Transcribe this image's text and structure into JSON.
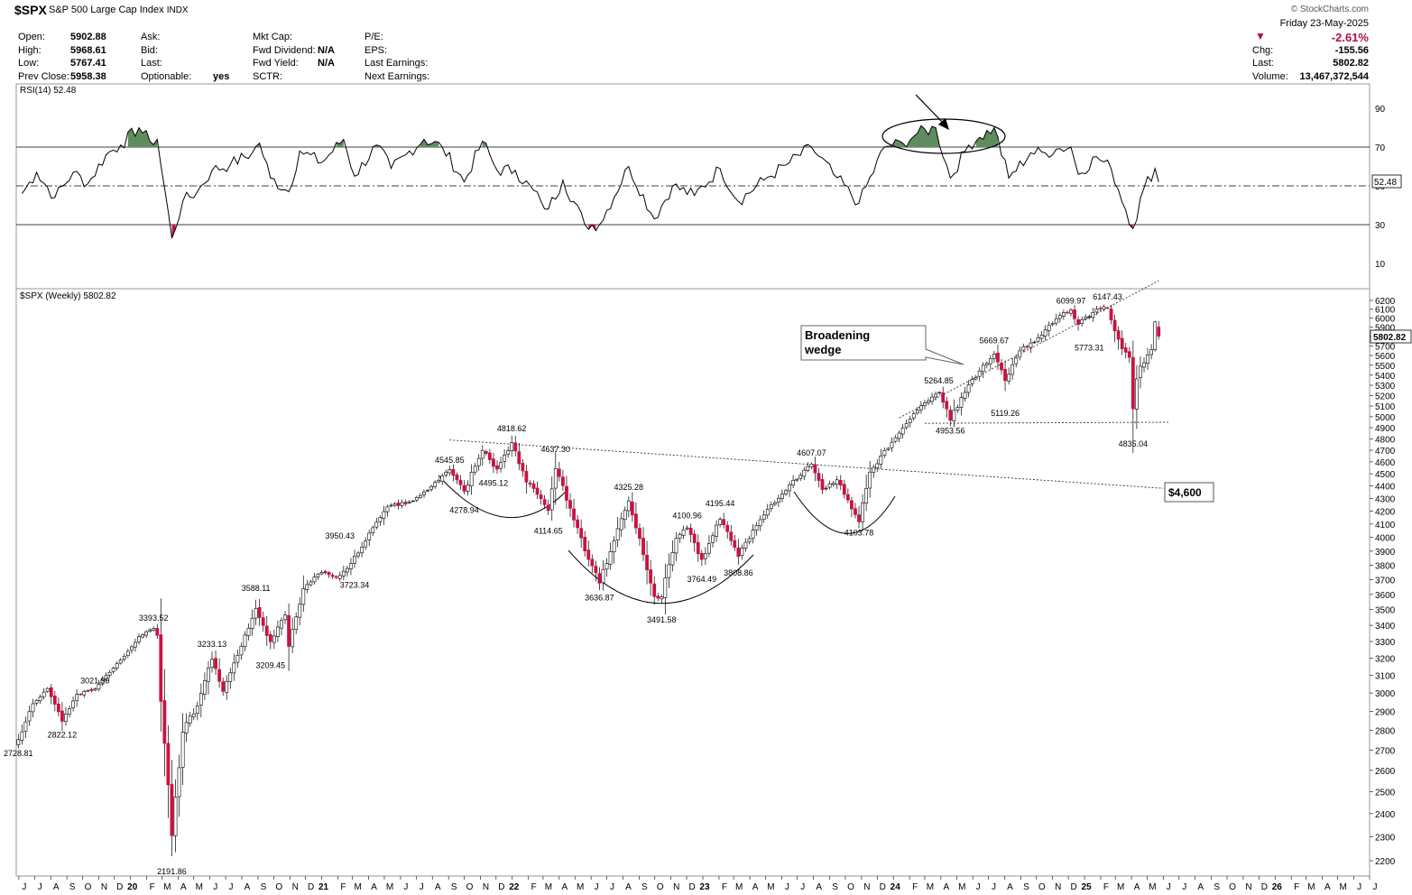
{
  "header": {
    "symbol": "$SPX",
    "name": "S&P 500 Large Cap Index",
    "exchange": "INDX",
    "brand": "© StockCharts.com",
    "date": "Friday   23-May-2025",
    "change_pct": "-2.61%",
    "change_label": "Chg:",
    "change_value": "-155.56",
    "last_label": "Last:",
    "last_value": "5802.82",
    "volume_label": "Volume:",
    "volume_value": "13,467,372,544",
    "fields": [
      {
        "label": "Open:",
        "value": "5902.88"
      },
      {
        "label": "High:",
        "value": "5968.61"
      },
      {
        "label": "Low:",
        "value": "5767.41"
      },
      {
        "label": "Prev Close:",
        "value": "5958.38"
      },
      {
        "label": "Ask:",
        "value": ""
      },
      {
        "label": "Bid:",
        "value": ""
      },
      {
        "label": "Last:",
        "value": ""
      },
      {
        "label": "Optionable:",
        "value": "yes"
      },
      {
        "label": "Mkt Cap:",
        "value": ""
      },
      {
        "label": "Fwd Dividend:",
        "value": "N/A"
      },
      {
        "label": "Fwd Yield:",
        "value": "N/A"
      },
      {
        "label": "SCTR:",
        "value": ""
      },
      {
        "label": "P/E:",
        "value": ""
      },
      {
        "label": "EPS:",
        "value": ""
      },
      {
        "label": "Last Earnings:",
        "value": ""
      },
      {
        "label": "Next Earnings:",
        "value": ""
      }
    ]
  },
  "chart_data": {
    "type": "candlestick",
    "colors": {
      "up": "#ffffff",
      "down": "#cc1142",
      "outline": "#000000",
      "rsi_fill": "#5e8c5e"
    },
    "rsi": {
      "label": "RSI(14) 52.48",
      "value_tag": "52.48",
      "levels": [
        90,
        70,
        50,
        30,
        10
      ],
      "overbought": 70,
      "oversold": 30,
      "points": [
        [
          "2019-06-07",
          46
        ],
        [
          "2019-07-05",
          57
        ],
        [
          "2019-08-09",
          44
        ],
        [
          "2019-09-13",
          57
        ],
        [
          "2019-10-11",
          51
        ],
        [
          "2019-11-15",
          66
        ],
        [
          "2019-12-13",
          71
        ],
        [
          "2020-01-17",
          80
        ],
        [
          "2020-02-07",
          73
        ],
        [
          "2020-02-21",
          74
        ],
        [
          "2020-03-20",
          23
        ],
        [
          "2020-04-10",
          42
        ],
        [
          "2020-05-08",
          47
        ],
        [
          "2020-06-05",
          58
        ],
        [
          "2020-07-10",
          61
        ],
        [
          "2020-08-21",
          67
        ],
        [
          "2020-09-04",
          72
        ],
        [
          "2020-09-25",
          54
        ],
        [
          "2020-10-30",
          47
        ],
        [
          "2020-11-20",
          68
        ],
        [
          "2021-01-01",
          62
        ],
        [
          "2021-02-12",
          74
        ],
        [
          "2021-03-05",
          55
        ],
        [
          "2021-04-16",
          71
        ],
        [
          "2021-05-14",
          59
        ],
        [
          "2021-06-11",
          66
        ],
        [
          "2021-07-16",
          74
        ],
        [
          "2021-08-20",
          70
        ],
        [
          "2021-10-01",
          52
        ],
        [
          "2021-11-05",
          73
        ],
        [
          "2021-12-03",
          58
        ],
        [
          "2022-01-07",
          58
        ],
        [
          "2022-02-25",
          42
        ],
        [
          "2022-03-11",
          38
        ],
        [
          "2022-04-08",
          53
        ],
        [
          "2022-05-20",
          30
        ],
        [
          "2022-06-17",
          30
        ],
        [
          "2022-08-12",
          60
        ],
        [
          "2022-09-30",
          33
        ],
        [
          "2022-11-04",
          50
        ],
        [
          "2022-12-16",
          45
        ],
        [
          "2023-02-03",
          59
        ],
        [
          "2023-03-10",
          42
        ],
        [
          "2023-04-28",
          53
        ],
        [
          "2023-06-16",
          62
        ],
        [
          "2023-07-28",
          70
        ],
        [
          "2023-09-08",
          56
        ],
        [
          "2023-10-27",
          41
        ],
        [
          "2023-12-15",
          70
        ],
        [
          "2024-01-19",
          72
        ],
        [
          "2024-02-16",
          77
        ],
        [
          "2024-03-22",
          80
        ],
        [
          "2024-04-19",
          54
        ],
        [
          "2024-05-24",
          71
        ],
        [
          "2024-06-14",
          75
        ],
        [
          "2024-07-12",
          80
        ],
        [
          "2024-08-09",
          54
        ],
        [
          "2024-09-20",
          67
        ],
        [
          "2024-10-18",
          67
        ],
        [
          "2024-11-08",
          69
        ],
        [
          "2024-12-06",
          70
        ],
        [
          "2024-12-20",
          56
        ],
        [
          "2025-01-24",
          65
        ],
        [
          "2025-02-21",
          59
        ],
        [
          "2025-04-04",
          28
        ],
        [
          "2025-04-25",
          49
        ],
        [
          "2025-05-16",
          59
        ],
        [
          "2025-05-23",
          52
        ]
      ]
    },
    "price": {
      "label": "$SPX (Weekly) 5802.82",
      "last_tag": "5802.82",
      "y_ticks": [
        2200,
        2300,
        2400,
        2500,
        2600,
        2700,
        2800,
        2900,
        3000,
        3100,
        3200,
        3300,
        3400,
        3500,
        3600,
        3700,
        3800,
        3900,
        4000,
        4100,
        4200,
        4300,
        4400,
        4500,
        4600,
        4700,
        4800,
        4900,
        5000,
        5100,
        5200,
        5300,
        5400,
        5500,
        5600,
        5700,
        5800,
        5900,
        6000,
        6100,
        6200
      ],
      "anchors": [
        [
          "2019-05-31",
          2752,
          0.6
        ],
        [
          "2019-06-28",
          2941,
          0.3
        ],
        [
          "2019-07-26",
          3025,
          0.3
        ],
        [
          "2019-08-23",
          2847,
          0.7
        ],
        [
          "2019-09-20",
          2992,
          0.4
        ],
        [
          "2019-10-25",
          3022,
          0.4
        ],
        [
          "2019-11-29",
          3141,
          0.3
        ],
        [
          "2019-12-27",
          3240,
          0.3
        ],
        [
          "2020-01-17",
          3330,
          0.3
        ],
        [
          "2020-02-14",
          3380,
          0.3
        ],
        [
          "2020-02-21",
          3337,
          0.4
        ],
        [
          "2020-02-28",
          2954,
          1.0
        ],
        [
          "2020-03-20",
          2304,
          1.2
        ],
        [
          "2020-04-10",
          2790,
          1.1
        ],
        [
          "2020-05-08",
          2930,
          0.9
        ],
        [
          "2020-06-05",
          3193,
          0.8
        ],
        [
          "2020-06-26",
          3009,
          0.7
        ],
        [
          "2020-07-31",
          3271,
          0.5
        ],
        [
          "2020-08-28",
          3508,
          0.4
        ],
        [
          "2020-09-25",
          3298,
          0.9
        ],
        [
          "2020-10-23",
          3465,
          0.6
        ],
        [
          "2020-10-30",
          3270,
          0.7
        ],
        [
          "2020-11-27",
          3638,
          0.5
        ],
        [
          "2020-12-31",
          3756,
          0.4
        ],
        [
          "2021-01-29",
          3714,
          0.5
        ],
        [
          "2021-02-26",
          3811,
          0.6
        ],
        [
          "2021-04-01",
          4019,
          0.4
        ],
        [
          "2021-05-07",
          4232,
          0.5
        ],
        [
          "2021-06-25",
          4280,
          0.4
        ],
        [
          "2021-07-30",
          4395,
          0.4
        ],
        [
          "2021-09-03",
          4535,
          0.4
        ],
        [
          "2021-10-01",
          4357,
          0.9
        ],
        [
          "2021-11-05",
          4697,
          0.5
        ],
        [
          "2021-12-03",
          4538,
          0.9
        ],
        [
          "2021-12-31",
          4766,
          0.5
        ],
        [
          "2022-01-28",
          4431,
          1.0
        ],
        [
          "2022-03-11",
          4204,
          1.0
        ],
        [
          "2022-03-25",
          4543,
          0.7
        ],
        [
          "2022-05-20",
          3901,
          1.0
        ],
        [
          "2022-06-17",
          3675,
          1.0
        ],
        [
          "2022-08-12",
          4280,
          0.7
        ],
        [
          "2022-09-30",
          3586,
          1.0
        ],
        [
          "2022-10-14",
          3583,
          1.2
        ],
        [
          "2022-11-11",
          3993,
          0.8
        ],
        [
          "2022-12-02",
          4071,
          0.6
        ],
        [
          "2022-12-30",
          3840,
          0.8
        ],
        [
          "2023-02-03",
          4136,
          0.7
        ],
        [
          "2023-03-10",
          3862,
          0.8
        ],
        [
          "2023-04-28",
          4169,
          0.6
        ],
        [
          "2023-06-16",
          4409,
          0.5
        ],
        [
          "2023-07-28",
          4582,
          0.5
        ],
        [
          "2023-08-18",
          4370,
          0.7
        ],
        [
          "2023-09-15",
          4450,
          0.6
        ],
        [
          "2023-10-27",
          4117,
          0.9
        ],
        [
          "2023-11-17",
          4514,
          0.6
        ],
        [
          "2023-12-29",
          4770,
          0.5
        ],
        [
          "2024-02-09",
          5027,
          0.5
        ],
        [
          "2024-03-28",
          5254,
          0.4
        ],
        [
          "2024-04-19",
          4967,
          0.9
        ],
        [
          "2024-05-24",
          5305,
          0.6
        ],
        [
          "2024-07-12",
          5615,
          0.6
        ],
        [
          "2024-08-02",
          5346,
          1.0
        ],
        [
          "2024-08-30",
          5648,
          0.6
        ],
        [
          "2024-10-11",
          5815,
          0.5
        ],
        [
          "2024-11-08",
          5995,
          0.6
        ],
        [
          "2024-12-06",
          6090,
          0.5
        ],
        [
          "2024-12-20",
          5931,
          0.9
        ],
        [
          "2025-01-24",
          6101,
          0.6
        ],
        [
          "2025-02-14",
          6114,
          0.5
        ],
        [
          "2025-03-07",
          5770,
          1.1
        ],
        [
          "2025-03-28",
          5580,
          1.2
        ],
        [
          "2025-04-04",
          5074,
          1.8
        ],
        [
          "2025-04-11",
          5363,
          2.2
        ],
        [
          "2025-04-25",
          5525,
          1.0
        ],
        [
          "2025-05-09",
          5660,
          0.8
        ],
        [
          "2025-05-16",
          5958,
          0.6
        ],
        [
          "2025-05-23",
          5802.82,
          0.5
        ]
      ],
      "fixed_candles": [
        [
          "2025-05-16",
          5660,
          5969,
          5640,
          5958
        ],
        [
          "2025-05-23",
          5902.88,
          5968.61,
          5767.41,
          5802.82
        ]
      ],
      "annotations": [
        {
          "date": "2019-05-31",
          "value": 2728.81,
          "text": "2728.81",
          "pos": "below"
        },
        {
          "date": "2019-08-23",
          "value": 2822.12,
          "text": "2822.12",
          "pos": "below"
        },
        {
          "date": "2019-10-25",
          "value": 3021.99,
          "text": "3021.99",
          "pos": "above"
        },
        {
          "date": "2020-02-14",
          "value": 3393.52,
          "text": "3393.52",
          "pos": "above"
        },
        {
          "date": "2020-03-20",
          "value": 2191.86,
          "text": "2191.86",
          "pos": "below"
        },
        {
          "date": "2020-06-05",
          "value": 3233.13,
          "text": "3233.13",
          "pos": "above"
        },
        {
          "date": "2020-08-28",
          "value": 3588.11,
          "text": "3588.11",
          "pos": "above"
        },
        {
          "date": "2020-09-25",
          "value": 3209.45,
          "text": "3209.45",
          "pos": "below"
        },
        {
          "date": "2021-02-05",
          "value": 3950.43,
          "text": "3950.43",
          "pos": "above"
        },
        {
          "date": "2021-03-05",
          "value": 3723.34,
          "text": "3723.34",
          "pos": "below"
        },
        {
          "date": "2021-09-03",
          "value": 4545.85,
          "text": "4545.85",
          "pos": "above"
        },
        {
          "date": "2021-10-01",
          "value": 4278.94,
          "text": "4278.94",
          "pos": "below"
        },
        {
          "date": "2021-11-26",
          "value": 4495.12,
          "text": "4495.12",
          "pos": "below"
        },
        {
          "date": "2021-12-31",
          "value": 4818.62,
          "text": "4818.62",
          "pos": "above"
        },
        {
          "date": "2022-03-11",
          "value": 4114.65,
          "text": "4114.65",
          "pos": "below"
        },
        {
          "date": "2022-03-25",
          "value": 4637.3,
          "text": "4637.30",
          "pos": "above"
        },
        {
          "date": "2022-06-17",
          "value": 3636.87,
          "text": "3636.87",
          "pos": "below"
        },
        {
          "date": "2022-08-12",
          "value": 4325.28,
          "text": "4325.28",
          "pos": "above"
        },
        {
          "date": "2022-10-14",
          "value": 3491.58,
          "text": "3491.58",
          "pos": "below"
        },
        {
          "date": "2022-12-02",
          "value": 4100.96,
          "text": "4100.96",
          "pos": "above"
        },
        {
          "date": "2022-12-30",
          "value": 3764.49,
          "text": "3764.49",
          "pos": "below"
        },
        {
          "date": "2023-02-03",
          "value": 4195.44,
          "text": "4195.44",
          "pos": "above"
        },
        {
          "date": "2023-03-10",
          "value": 3808.86,
          "text": "3808.86",
          "pos": "below"
        },
        {
          "date": "2023-07-28",
          "value": 4607.07,
          "text": "4607.07",
          "pos": "above"
        },
        {
          "date": "2023-10-27",
          "value": 4103.78,
          "text": "4103.78",
          "pos": "below"
        },
        {
          "date": "2024-03-28",
          "value": 5264.85,
          "text": "5264.85",
          "pos": "above"
        },
        {
          "date": "2024-04-19",
          "value": 4953.56,
          "text": "4953.56",
          "pos": "below"
        },
        {
          "date": "2024-07-12",
          "value": 5669.67,
          "text": "5669.67",
          "pos": "above"
        },
        {
          "date": "2024-08-02",
          "value": 5119.26,
          "text": "5119.26",
          "pos": "below"
        },
        {
          "date": "2024-12-06",
          "value": 6099.97,
          "text": "6099.97",
          "pos": "above"
        },
        {
          "date": "2025-01-10",
          "value": 5773.31,
          "text": "5773.31",
          "pos": "below"
        },
        {
          "date": "2025-02-14",
          "value": 6147.43,
          "text": "6147.43",
          "pos": "above"
        },
        {
          "date": "2025-04-04",
          "value": 4835.04,
          "text": "4835.04",
          "pos": "below"
        }
      ],
      "callout_wedge": "Broadening\nwedge",
      "callout_target": "$4,600",
      "lines": {
        "neckline": [
          [
            "2021-09-03",
            4790
          ],
          [
            "2025-06-01",
            4380
          ]
        ],
        "wedge_upper": [
          [
            "2024-01-12",
            4990
          ],
          [
            "2025-05-23",
            6430
          ]
        ],
        "wedge_lower": [
          [
            "2024-03-01",
            4940
          ],
          [
            "2025-06-13",
            4950
          ]
        ]
      }
    },
    "x_axis": {
      "months": [
        "J",
        "J",
        "A",
        "S",
        "O",
        "N",
        "D",
        "20",
        "F",
        "M",
        "A",
        "M",
        "J",
        "J",
        "A",
        "S",
        "O",
        "N",
        "D",
        "21",
        "F",
        "M",
        "A",
        "M",
        "J",
        "J",
        "A",
        "S",
        "O",
        "N",
        "D",
        "22",
        "F",
        "M",
        "A",
        "M",
        "J",
        "J",
        "A",
        "S",
        "O",
        "N",
        "D",
        "23",
        "F",
        "M",
        "A",
        "M",
        "J",
        "J",
        "A",
        "S",
        "O",
        "N",
        "D",
        "24",
        "F",
        "M",
        "A",
        "M",
        "J",
        "J",
        "A",
        "S",
        "O",
        "N",
        "D",
        "25",
        "F",
        "M",
        "A",
        "M",
        "J",
        "J",
        "A",
        "S",
        "O",
        "N",
        "D",
        "26",
        "F",
        "M",
        "A",
        "M",
        "J",
        "J"
      ],
      "start": "2019-06-01"
    }
  }
}
